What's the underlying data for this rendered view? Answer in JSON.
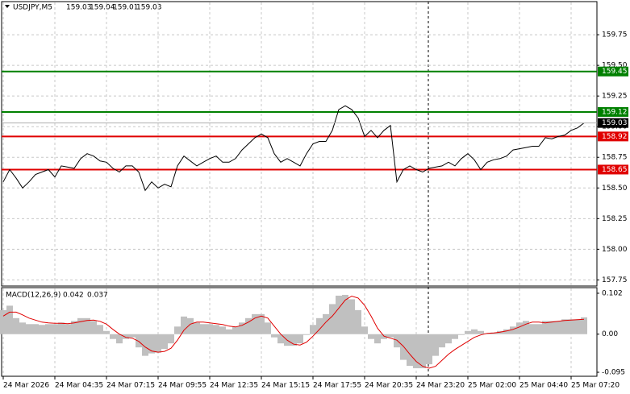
{
  "chart_data": [
    {
      "type": "line",
      "header": "USDJPY,M5",
      "ohlc": [
        159.03,
        159.04,
        159.01,
        159.03
      ],
      "xlim": [
        -0.25,
        92
      ],
      "xticks": [
        {
          "value": 0,
          "label": "24 Mar 2026"
        },
        {
          "value": 8,
          "label": "24 Mar 04:35"
        },
        {
          "value": 16,
          "label": "24 Mar 07:15"
        },
        {
          "value": 24,
          "label": "24 Mar 09:55"
        },
        {
          "value": 32,
          "label": "24 Mar 12:35"
        },
        {
          "value": 40,
          "label": "24 Mar 15:15"
        },
        {
          "value": 48,
          "label": "24 Mar 17:55"
        },
        {
          "value": 56,
          "label": "24 Mar 20:35"
        },
        {
          "value": 64,
          "label": "24 Mar 23:20"
        },
        {
          "value": 72,
          "label": "25 Mar 02:00"
        },
        {
          "value": 80,
          "label": "25 Mar 04:40"
        },
        {
          "value": 88,
          "label": "25 Mar 07:20"
        }
      ],
      "ylim": [
        157.7,
        160.02
      ],
      "yticks": [
        {
          "value": 157.75,
          "label": "157.75"
        },
        {
          "value": 158,
          "label": "158.00"
        },
        158.25,
        {
          "value": 158.5,
          "label": "158.50"
        },
        158.75,
        {
          "value": 159,
          "label": "159.00"
        },
        159.25,
        {
          "value": 159.5,
          "label": "159.50"
        },
        159.75
      ],
      "grid": true,
      "levels": [
        {
          "value": 159.45,
          "color": "#008000"
        },
        {
          "value": 159.12,
          "color": "#008000"
        },
        {
          "value": 158.92,
          "color": "#e00000"
        },
        {
          "value": 158.65,
          "color": "#e00000"
        }
      ],
      "series": [
        {
          "name": "USDJPY",
          "color": "#000000",
          "values": [
            158.55,
            158.65,
            158.58,
            158.5,
            158.55,
            158.61,
            158.63,
            158.65,
            158.59,
            158.68,
            158.67,
            158.66,
            158.74,
            158.78,
            158.76,
            158.72,
            158.71,
            158.66,
            158.63,
            158.68,
            158.68,
            158.63,
            158.48,
            158.55,
            158.5,
            158.53,
            158.51,
            158.68,
            158.76,
            158.72,
            158.68,
            158.71,
            158.74,
            158.76,
            158.71,
            158.71,
            158.74,
            158.81,
            158.86,
            158.91,
            158.94,
            158.91,
            158.78,
            158.71,
            158.74,
            158.71,
            158.68,
            158.78,
            158.86,
            158.88,
            158.88,
            158.97,
            159.14,
            159.17,
            159.14,
            159.07,
            158.92,
            158.97,
            158.91,
            158.97,
            159.01,
            158.55,
            158.65,
            158.68,
            158.65,
            158.63,
            158.66,
            158.67,
            158.68,
            158.71,
            158.68,
            158.74,
            158.78,
            158.73,
            158.65,
            158.71,
            158.73,
            158.74,
            158.76,
            158.81,
            158.82,
            158.83,
            158.84,
            158.84,
            158.91,
            158.9,
            158.92,
            158.93,
            158.97,
            158.99,
            159.03
          ]
        }
      ]
    },
    {
      "type": "bar",
      "label": "MACD(12,26,9)",
      "ylim": [
        -0.105,
        0.116
      ],
      "yticks": [
        0.102,
        {
          "value": 0,
          "label": "0.00"
        },
        -0.095
      ],
      "series": [
        {
          "name": "MACD",
          "style": "bar",
          "color": "#c0c0c0",
          "values": [
            0.06,
            0.071,
            0.04,
            0.029,
            0.025,
            0.025,
            0.023,
            0.025,
            0.025,
            0.029,
            0.025,
            0.033,
            0.04,
            0.04,
            0.033,
            0.023,
            0.008,
            -0.012,
            -0.023,
            -0.012,
            -0.008,
            -0.033,
            -0.054,
            -0.048,
            -0.046,
            -0.037,
            -0.023,
            0.019,
            0.044,
            0.04,
            0.029,
            0.025,
            0.025,
            0.023,
            0.019,
            0.012,
            0.019,
            0.029,
            0.04,
            0.05,
            0.05,
            0.029,
            -0.008,
            -0.023,
            -0.029,
            -0.029,
            -0.023,
            -0.002,
            0.023,
            0.04,
            0.05,
            0.075,
            0.096,
            0.098,
            0.087,
            0.06,
            0.019,
            -0.012,
            -0.023,
            -0.012,
            -0.008,
            -0.033,
            -0.064,
            -0.079,
            -0.085,
            -0.085,
            -0.075,
            -0.054,
            -0.033,
            -0.023,
            -0.012,
            -0.002,
            0.008,
            0.012,
            0.008,
            0.002,
            0.004,
            0.008,
            0.012,
            0.019,
            0.029,
            0.033,
            0.025,
            0.025,
            0.033,
            0.033,
            0.033,
            0.037,
            0.037,
            0.037,
            0.042
          ]
        },
        {
          "name": "Signal",
          "style": "line",
          "color": "#e00000",
          "values": [
            0.045,
            0.055,
            0.055,
            0.048,
            0.04,
            0.035,
            0.03,
            0.028,
            0.027,
            0.027,
            0.026,
            0.028,
            0.031,
            0.034,
            0.035,
            0.032,
            0.025,
            0.012,
            0.0,
            -0.008,
            -0.01,
            -0.018,
            -0.032,
            -0.042,
            -0.045,
            -0.043,
            -0.035,
            -0.015,
            0.01,
            0.025,
            0.03,
            0.03,
            0.028,
            0.026,
            0.024,
            0.02,
            0.018,
            0.022,
            0.03,
            0.04,
            0.045,
            0.04,
            0.02,
            0.0,
            -0.015,
            -0.025,
            -0.027,
            -0.02,
            -0.005,
            0.012,
            0.03,
            0.045,
            0.065,
            0.085,
            0.095,
            0.09,
            0.072,
            0.045,
            0.015,
            -0.005,
            -0.01,
            -0.015,
            -0.03,
            -0.05,
            -0.068,
            -0.08,
            -0.085,
            -0.08,
            -0.065,
            -0.05,
            -0.038,
            -0.028,
            -0.018,
            -0.008,
            -0.002,
            0.002,
            0.003,
            0.005,
            0.008,
            0.012,
            0.018,
            0.025,
            0.03,
            0.03,
            0.028,
            0.03,
            0.032,
            0.034,
            0.035,
            0.036,
            0.037
          ]
        }
      ]
    }
  ]
}
